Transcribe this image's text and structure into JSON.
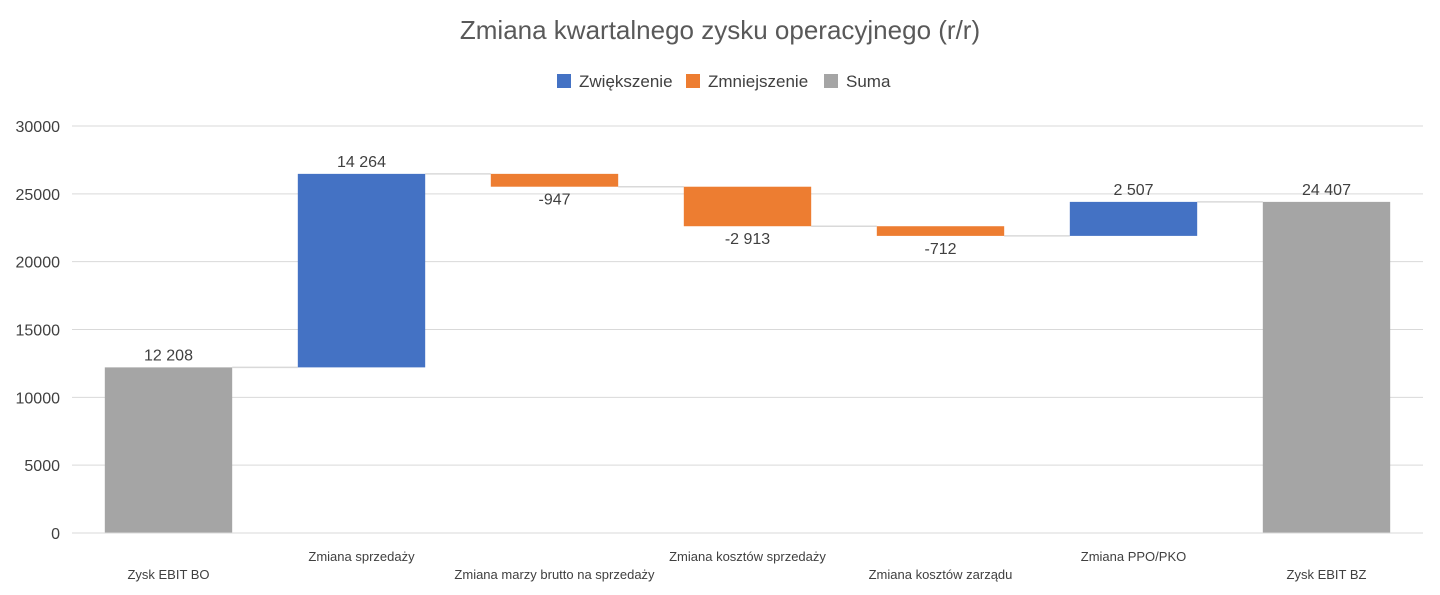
{
  "chart_data": {
    "type": "waterfall",
    "title": "Zmiana kwartalnego zysku operacyjnego (r/r)",
    "legend": [
      {
        "label": "Zwiększenie",
        "color": "#4472C4"
      },
      {
        "label": "Zmniejszenie",
        "color": "#ED7D31"
      },
      {
        "label": "Suma",
        "color": "#A5A5A5"
      }
    ],
    "legend_position": "top",
    "ylim": [
      0,
      30000
    ],
    "yticks": [
      "0",
      "5000",
      "10000",
      "15000",
      "20000",
      "25000",
      "30000"
    ],
    "grid": true,
    "categories": [
      "Zysk EBIT BO",
      "Zmiana sprzedaży",
      "Zmiana marzy brutto na sprzedaży",
      "Zmiana kosztów sprzedaży",
      "Zmiana kosztów zarządu",
      "Zmiana PPO/PKO",
      "Zysk EBIT BZ"
    ],
    "values": [
      12208,
      14264,
      -947,
      -2913,
      -712,
      2507,
      24407
    ],
    "kinds": [
      "total",
      "increase",
      "decrease",
      "decrease",
      "decrease",
      "increase",
      "total"
    ],
    "value_labels": [
      "12 208",
      "14 264",
      "-947",
      "-2 913",
      "-712",
      "2 507",
      "24 407"
    ]
  }
}
